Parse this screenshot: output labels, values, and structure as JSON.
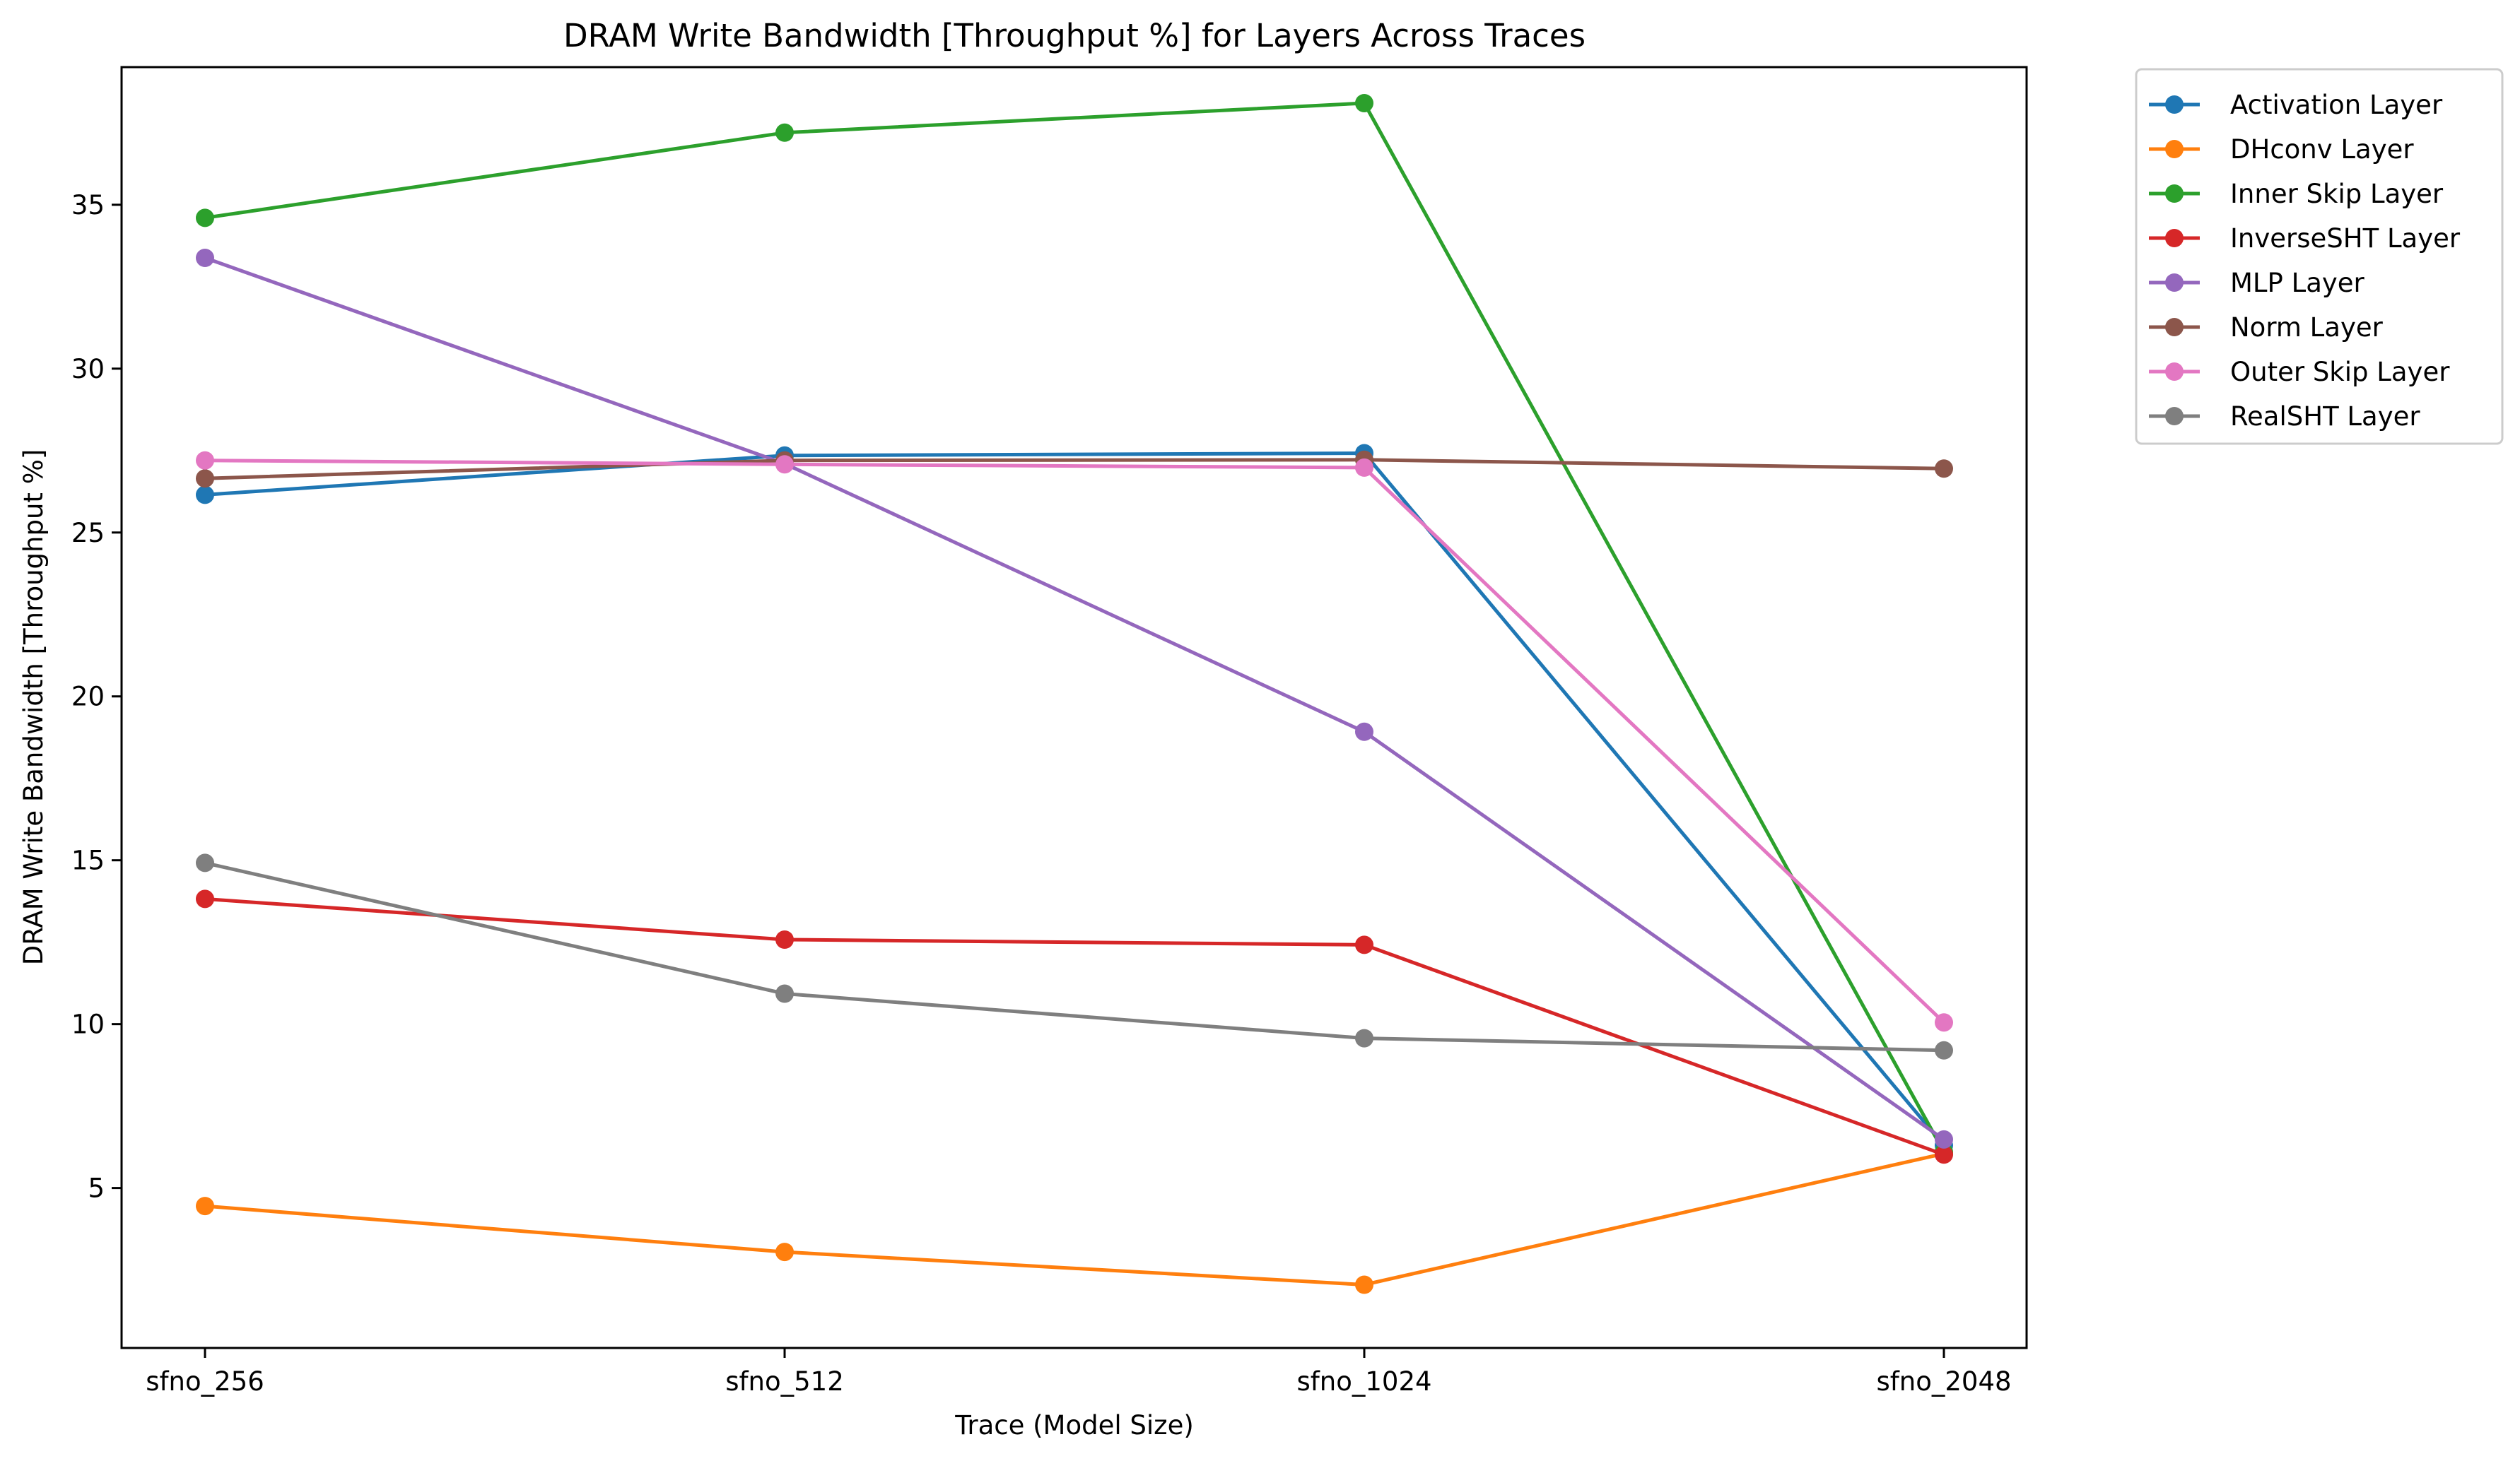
{
  "chart_data": {
    "type": "line",
    "title": "DRAM Write Bandwidth [Throughput %] for Layers Across Traces",
    "xlabel": "Trace (Model Size)",
    "ylabel": "DRAM Write Bandwidth [Throughput %]",
    "categories": [
      "sfno_256",
      "sfno_512",
      "sfno_1024",
      "sfno_2048"
    ],
    "yticks": [
      5,
      10,
      15,
      20,
      25,
      30,
      35
    ],
    "ylim": [
      0.12,
      39.2
    ],
    "grid": false,
    "legend_placement": "outside-top-right",
    "series": [
      {
        "name": "Activation Layer",
        "color": "#1f77b4",
        "values": [
          26.15,
          27.35,
          27.42,
          6.3
        ]
      },
      {
        "name": "DHconv Layer",
        "color": "#ff7f0e",
        "values": [
          4.45,
          3.05,
          2.05,
          6.05
        ]
      },
      {
        "name": "Inner Skip Layer",
        "color": "#2ca02c",
        "values": [
          34.6,
          37.2,
          38.1,
          6.1
        ]
      },
      {
        "name": "InverseSHT Layer",
        "color": "#d62728",
        "values": [
          13.82,
          12.58,
          12.42,
          6.02
        ]
      },
      {
        "name": "MLP Layer",
        "color": "#9467bd",
        "values": [
          33.38,
          27.1,
          18.92,
          6.48
        ]
      },
      {
        "name": "Norm Layer",
        "color": "#8c564b",
        "values": [
          26.65,
          27.2,
          27.22,
          26.95
        ]
      },
      {
        "name": "Outer Skip Layer",
        "color": "#e377c2",
        "values": [
          27.2,
          27.08,
          26.98,
          10.05
        ]
      },
      {
        "name": "RealSHT Layer",
        "color": "#7f7f7f",
        "values": [
          14.92,
          10.93,
          9.57,
          9.2
        ]
      }
    ]
  }
}
